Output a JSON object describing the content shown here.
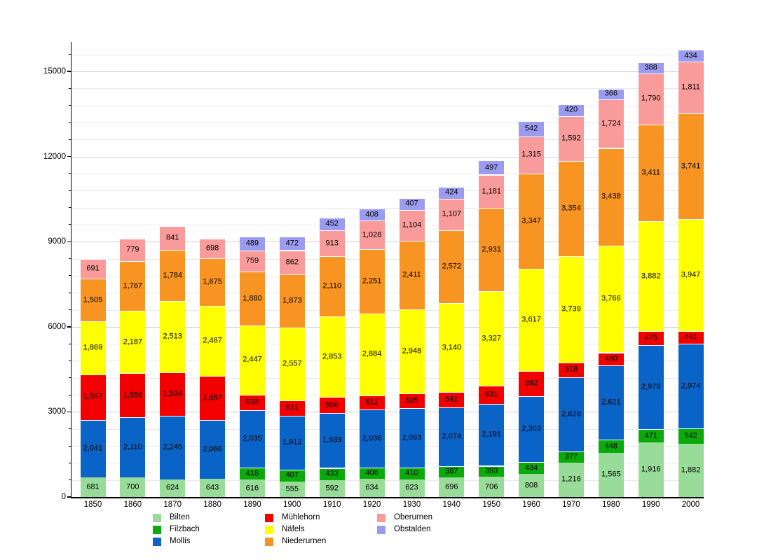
{
  "chart_data": {
    "type": "bar",
    "stacked": true,
    "title": "",
    "xlabel": "",
    "ylabel": "",
    "grid": true,
    "legend_position": "bottom",
    "categories": [
      "1850",
      "1860",
      "1870",
      "1880",
      "1890",
      "1900",
      "1910",
      "1920",
      "1930",
      "1940",
      "1950",
      "1960",
      "1970",
      "1980",
      "1990",
      "2000"
    ],
    "series": [
      {
        "name": "Bilten",
        "color": "#99DB99",
        "values": [
          681,
          700,
          624,
          643,
          616,
          555,
          592,
          634,
          623,
          696,
          706,
          808,
          1216,
          1565,
          1916,
          1882
        ]
      },
      {
        "name": "Filzbach",
        "color": "#0AAA0A",
        "values": [
          null,
          null,
          null,
          null,
          418,
          407,
          432,
          406,
          410,
          387,
          393,
          434,
          377,
          448,
          471,
          542
        ]
      },
      {
        "name": "Mollis",
        "color": "#0A64C8",
        "values": [
          2041,
          2110,
          2245,
          2066,
          2035,
          1912,
          1939,
          2036,
          2093,
          2074,
          2191,
          2303,
          2628,
          2621,
          2978,
          2974
        ]
      },
      {
        "name": "Mühlehorn",
        "color": "#F30000",
        "values": [
          1597,
          1556,
          1534,
          1557,
          538,
          531,
          558,
          512,
          535,
          541,
          631,
          892,
          518,
          460,
          475,
          441
        ]
      },
      {
        "name": "Näfels",
        "color": "#FFFF00",
        "values": [
          1869,
          2187,
          2513,
          2467,
          2447,
          2557,
          2853,
          2884,
          2948,
          3140,
          3327,
          3617,
          3739,
          3766,
          3882,
          3947
        ]
      },
      {
        "name": "Niederurnen",
        "color": "#F89422",
        "values": [
          1505,
          1767,
          1784,
          1675,
          1880,
          1873,
          2110,
          2251,
          2411,
          2572,
          2931,
          3347,
          3354,
          3438,
          3411,
          3741
        ]
      },
      {
        "name": "Oberurnen",
        "color": "#F99B9B",
        "values": [
          691,
          779,
          841,
          698,
          759,
          862,
          913,
          1028,
          1104,
          1107,
          1181,
          1315,
          1592,
          1724,
          1790,
          1811
        ]
      },
      {
        "name": "Obstalden",
        "color": "#9B9BF0",
        "values": [
          null,
          null,
          null,
          null,
          489,
          472,
          452,
          408,
          407,
          424,
          497,
          542,
          420,
          366,
          388,
          434
        ]
      }
    ],
    "y_axis": {
      "ticks": [
        0,
        3000,
        6000,
        9000,
        12000,
        15000
      ],
      "minor_step": 600,
      "ylim": [
        0,
        16050
      ]
    },
    "legend_columns": [
      [
        "Bilten",
        "Filzbach",
        "Mollis"
      ],
      [
        "Mühlehorn",
        "Näfels",
        "Niederurnen"
      ],
      [
        "Oberurnen",
        "Obstalden"
      ]
    ]
  }
}
